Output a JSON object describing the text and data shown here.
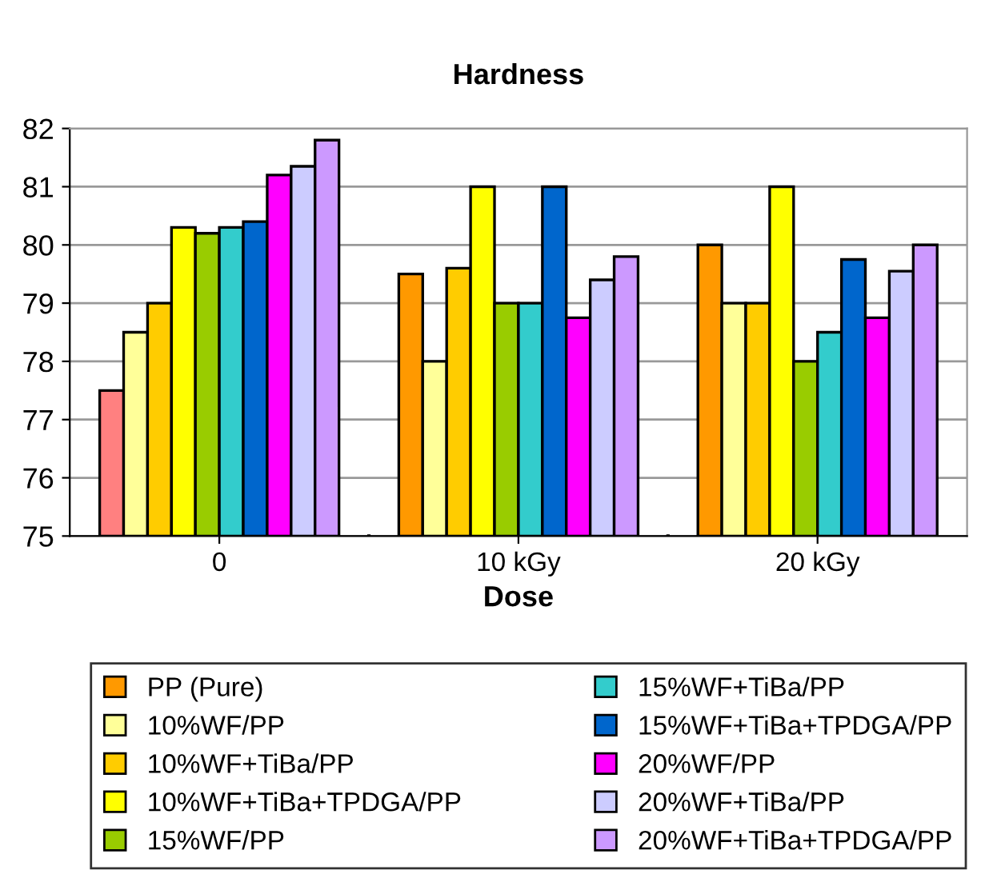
{
  "chart_data": {
    "type": "bar",
    "title": "Hardness",
    "xlabel": "Dose",
    "categories": [
      "0",
      "10 kGy",
      "20 kGy"
    ],
    "series": [
      {
        "name": "PP (Pure)",
        "color": "#ff9900",
        "colors": [
          "#ff8080",
          "#ff9900",
          "#ff9900"
        ],
        "values": [
          77.5,
          79.5,
          80.0
        ]
      },
      {
        "name": "10%WF/PP",
        "color": "#ffff99",
        "values": [
          78.5,
          78.0,
          79.0
        ]
      },
      {
        "name": "10%WF+TiBa/PP",
        "color": "#ffcc00",
        "values": [
          79.0,
          79.6,
          79.0
        ]
      },
      {
        "name": "10%WF+TiBa+TPDGA/PP",
        "color": "#ffff00",
        "values": [
          80.3,
          81.0,
          81.0
        ]
      },
      {
        "name": "15%WF/PP",
        "color": "#99cc00",
        "values": [
          80.2,
          79.0,
          78.0
        ]
      },
      {
        "name": "15%WF+TiBa/PP",
        "color": "#33cccc",
        "values": [
          80.3,
          79.0,
          78.5
        ]
      },
      {
        "name": "15%WF+TiBa+TPDGA/PP",
        "color": "#0066cc",
        "values": [
          80.4,
          81.0,
          79.75
        ]
      },
      {
        "name": "20%WF/PP",
        "color": "#ff00ff",
        "values": [
          81.2,
          78.75,
          78.75
        ]
      },
      {
        "name": "20%WF+TiBa/PP",
        "color": "#ccccff",
        "values": [
          81.35,
          79.4,
          79.55
        ]
      },
      {
        "name": "20%WF+TiBa+TPDGA/PP",
        "color": "#cc99ff",
        "values": [
          81.8,
          79.8,
          80.0
        ]
      }
    ],
    "ylim": [
      75,
      82
    ],
    "yticks": [
      75,
      76,
      77,
      78,
      79,
      80,
      81,
      82
    ],
    "grid": "y",
    "legend": "bottom"
  }
}
